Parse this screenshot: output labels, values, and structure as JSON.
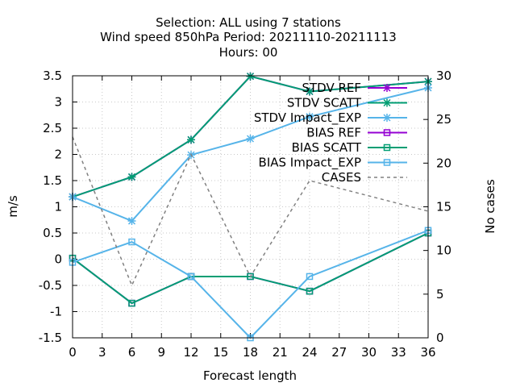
{
  "chart_data": {
    "type": "line",
    "title_lines": [
      "Selection: ALL using     7 stations",
      "Wind speed 850hPa   Period: 20211110-20211113",
      "Hours:  00"
    ],
    "xlabel": "Forecast length",
    "ylabel": "m/s",
    "y2label": "No cases",
    "xlim": [
      0,
      36
    ],
    "ylim": [
      -1.5,
      3.5
    ],
    "y2lim": [
      0,
      30
    ],
    "x_ticks": [
      "0",
      "3",
      "6",
      "9",
      "12",
      "15",
      "18",
      "21",
      "24",
      "27",
      "30",
      "33",
      "36"
    ],
    "y_ticks": [
      "-1.5",
      "-1",
      "-0.5",
      "0",
      "0.5",
      "1",
      "1.5",
      "2",
      "2.5",
      "3",
      "3.5"
    ],
    "y2_ticks": [
      "0",
      "5",
      "10",
      "15",
      "20",
      "25",
      "30"
    ],
    "grid": true,
    "legend_position": "top-right",
    "x": [
      0,
      6,
      12,
      18,
      24,
      36
    ],
    "series": [
      {
        "name": "STDV REF",
        "axis": "y",
        "color": "#9400d3",
        "marker": "x",
        "dash": false,
        "values": [
          1.19,
          1.57,
          2.28,
          3.49,
          3.2,
          3.39
        ]
      },
      {
        "name": "STDV SCATT",
        "axis": "y",
        "color": "#009e73",
        "marker": "x",
        "dash": false,
        "values": [
          1.19,
          1.57,
          2.28,
          3.49,
          3.2,
          3.39
        ]
      },
      {
        "name": "STDV Impact_EXP",
        "axis": "y",
        "color": "#56b4e9",
        "marker": "x",
        "dash": false,
        "values": [
          1.19,
          0.73,
          1.99,
          2.3,
          2.72,
          3.27
        ]
      },
      {
        "name": "BIAS REF",
        "axis": "y",
        "color": "#9400d3",
        "marker": "square",
        "dash": false,
        "values": [
          0.02,
          -0.84,
          -0.33,
          -0.33,
          -0.61,
          0.5
        ]
      },
      {
        "name": "BIAS SCATT",
        "axis": "y",
        "color": "#009e73",
        "marker": "square",
        "dash": false,
        "values": [
          0.02,
          -0.84,
          -0.33,
          -0.33,
          -0.61,
          0.5
        ]
      },
      {
        "name": "BIAS Impact_EXP",
        "axis": "y",
        "color": "#56b4e9",
        "marker": "square",
        "dash": false,
        "values": [
          -0.06,
          0.33,
          -0.33,
          -1.5,
          -0.33,
          0.55
        ]
      },
      {
        "name": "CASES",
        "axis": "y2",
        "color": "#808080",
        "marker": "none",
        "dash": true,
        "values": [
          23,
          6,
          21,
          7,
          18,
          14.5
        ]
      }
    ]
  }
}
